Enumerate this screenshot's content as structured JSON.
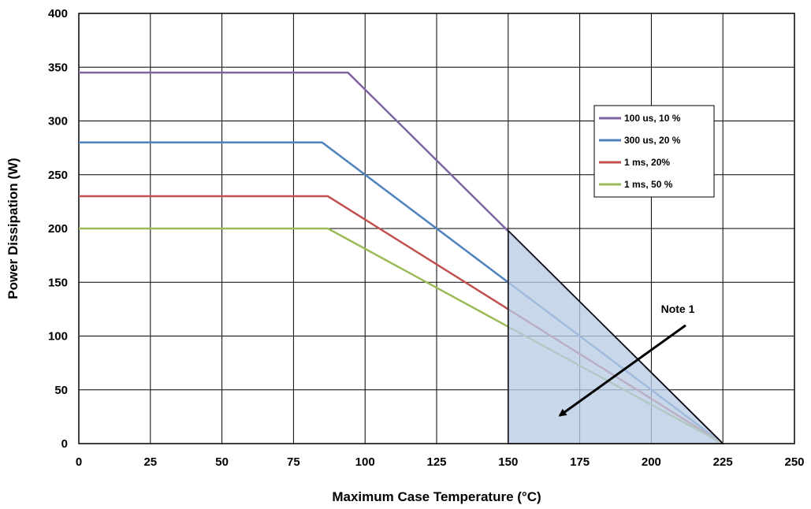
{
  "chart_data": {
    "type": "line",
    "xlabel": "Maximum Case Temperature (°C)",
    "ylabel": "Power Dissipation (W)",
    "xlim": [
      0,
      250
    ],
    "ylim": [
      0,
      400
    ],
    "x_ticks": [
      0,
      25,
      50,
      75,
      100,
      125,
      150,
      175,
      200,
      225,
      250
    ],
    "y_ticks": [
      0,
      50,
      100,
      150,
      200,
      250,
      300,
      350,
      400
    ],
    "grid": true,
    "legend_position": "right",
    "series": [
      {
        "name": "100 us, 10 %",
        "color": "#8064a2",
        "x": [
          0,
          94,
          225
        ],
        "y": [
          345,
          345,
          0
        ]
      },
      {
        "name": "300 us, 20 %",
        "color": "#4f81bd",
        "x": [
          0,
          85,
          225
        ],
        "y": [
          280,
          280,
          0
        ]
      },
      {
        "name": "1 ms, 20%",
        "color": "#c0504d",
        "x": [
          0,
          87,
          225
        ],
        "y": [
          230,
          230,
          0
        ]
      },
      {
        "name": "1 ms, 50 %",
        "color": "#9bbb59",
        "x": [
          0,
          87,
          225
        ],
        "y": [
          200,
          200,
          0
        ]
      }
    ],
    "shaded_region": {
      "x": [
        150,
        150,
        225
      ],
      "y": [
        0,
        198,
        0
      ],
      "color": "#b8cce4"
    },
    "annotation": {
      "text": "Note 1",
      "arrow_from": [
        212,
        110
      ],
      "arrow_to": [
        168,
        26
      ]
    }
  }
}
